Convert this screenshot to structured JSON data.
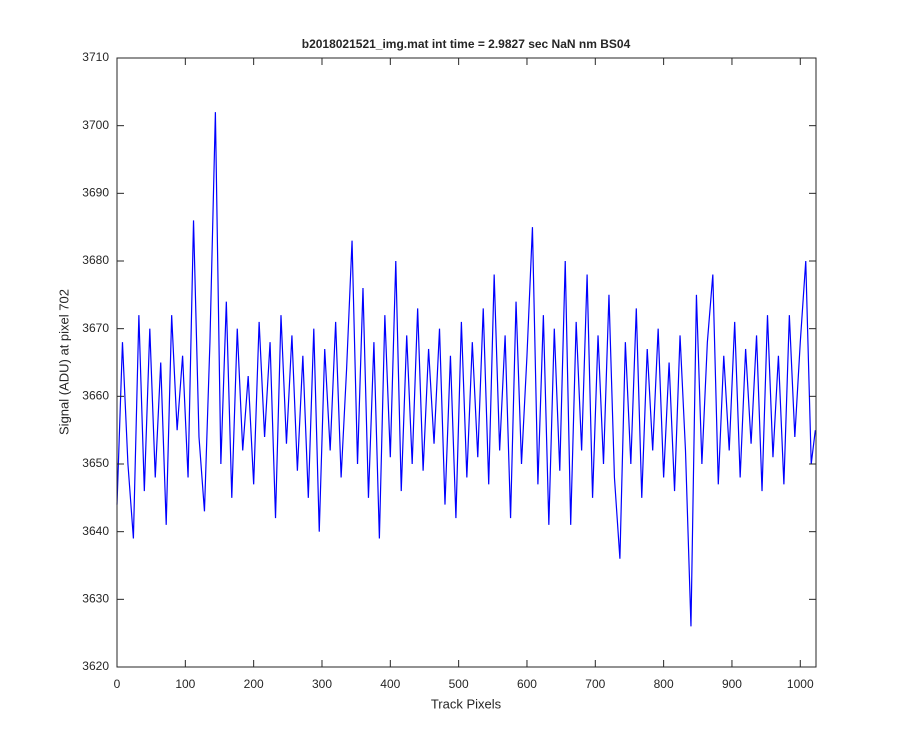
{
  "chart_data": {
    "type": "line",
    "title": "b2018021521_img.mat int time = 2.9827 sec  NaN nm BS04",
    "x_label": "Track Pixels",
    "y_label": "Signal (ADU) at pixel 702",
    "x": [
      0,
      8,
      16,
      24,
      32,
      40,
      48,
      56,
      64,
      72,
      80,
      88,
      96,
      104,
      112,
      120,
      128,
      136,
      144,
      152,
      160,
      168,
      176,
      184,
      192,
      200,
      208,
      216,
      224,
      232,
      240,
      248,
      256,
      264,
      272,
      280,
      288,
      296,
      304,
      312,
      320,
      328,
      336,
      344,
      352,
      360,
      368,
      376,
      384,
      392,
      400,
      408,
      416,
      424,
      432,
      440,
      448,
      456,
      464,
      472,
      480,
      488,
      496,
      504,
      512,
      520,
      528,
      536,
      544,
      552,
      560,
      568,
      576,
      584,
      592,
      600,
      608,
      616,
      624,
      632,
      640,
      648,
      656,
      664,
      672,
      680,
      688,
      696,
      704,
      712,
      720,
      728,
      736,
      744,
      752,
      760,
      768,
      776,
      784,
      792,
      800,
      808,
      816,
      824,
      832,
      840,
      848,
      856,
      864,
      872,
      880,
      888,
      896,
      904,
      912,
      920,
      928,
      936,
      944,
      952,
      960,
      968,
      976,
      984,
      992,
      1000,
      1008,
      1016,
      1022
    ],
    "series": [
      {
        "color": "#0000ff",
        "values": [
          3644,
          3668,
          3650,
          3639,
          3672,
          3646,
          3670,
          3648,
          3665,
          3641,
          3672,
          3655,
          3666,
          3648,
          3686,
          3654,
          3643,
          3668,
          3702,
          3650,
          3674,
          3645,
          3670,
          3652,
          3663,
          3647,
          3671,
          3654,
          3668,
          3642,
          3672,
          3653,
          3669,
          3649,
          3666,
          3645,
          3670,
          3640,
          3667,
          3652,
          3671,
          3648,
          3664,
          3683,
          3650,
          3676,
          3645,
          3668,
          3639,
          3672,
          3651,
          3680,
          3646,
          3669,
          3650,
          3673,
          3649,
          3667,
          3653,
          3670,
          3644,
          3666,
          3642,
          3671,
          3648,
          3668,
          3651,
          3673,
          3647,
          3678,
          3652,
          3669,
          3642,
          3674,
          3650,
          3666,
          3685,
          3647,
          3672,
          3641,
          3670,
          3649,
          3680,
          3641,
          3671,
          3652,
          3678,
          3645,
          3669,
          3650,
          3675,
          3648,
          3636,
          3668,
          3650,
          3673,
          3645,
          3667,
          3652,
          3670,
          3648,
          3665,
          3646,
          3669,
          3652,
          3626,
          3675,
          3650,
          3668,
          3678,
          3647,
          3666,
          3652,
          3671,
          3648,
          3667,
          3653,
          3669,
          3646,
          3672,
          3651,
          3666,
          3647,
          3672,
          3654,
          3668,
          3680,
          3650,
          3655
        ]
      }
    ],
    "xlim": [
      0,
      1023
    ],
    "ylim": [
      3620,
      3710
    ],
    "xticks": [
      0,
      100,
      200,
      300,
      400,
      500,
      600,
      700,
      800,
      900,
      1000
    ],
    "yticks": [
      3620,
      3630,
      3640,
      3650,
      3660,
      3670,
      3680,
      3690,
      3700,
      3710
    ]
  }
}
